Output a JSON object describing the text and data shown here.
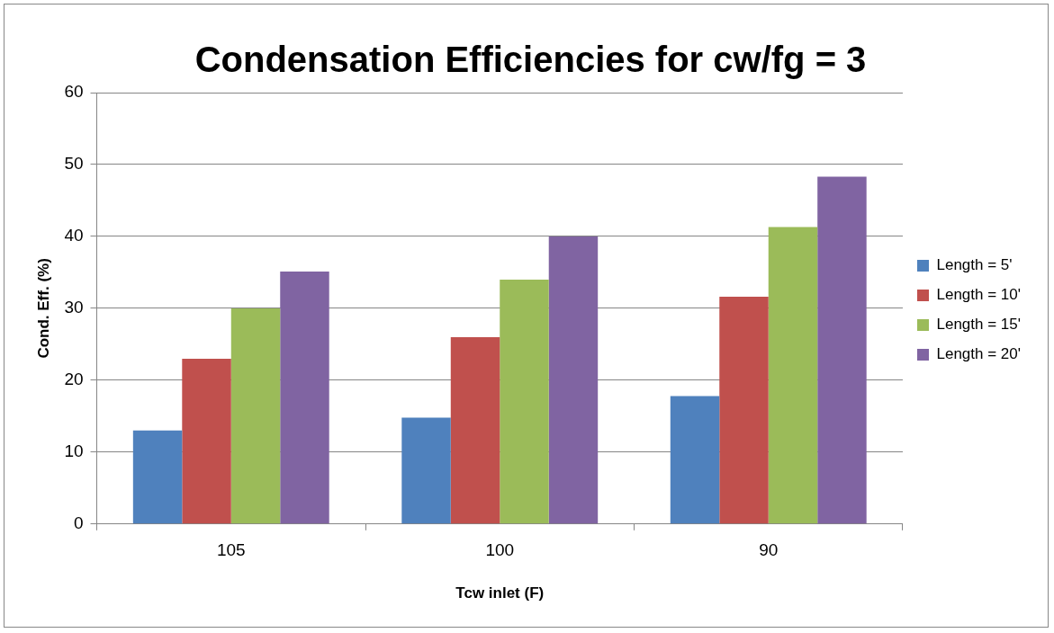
{
  "chart_data": {
    "type": "bar",
    "title": "Condensation Efficiencies for cw/fg = 3",
    "xlabel": "Tcw inlet (F)",
    "ylabel": "Cond. Eff. (%)",
    "categories": [
      "105",
      "100",
      "90"
    ],
    "series": [
      {
        "name": "Length = 5'",
        "color": "#4f81bd",
        "values": [
          13,
          14.8,
          17.8
        ]
      },
      {
        "name": "Length = 10'",
        "color": "#c0504d",
        "values": [
          23,
          26,
          31.6
        ]
      },
      {
        "name": "Length = 15'",
        "color": "#9bbb59",
        "values": [
          30,
          34,
          41.3
        ]
      },
      {
        "name": "Length = 20'",
        "color": "#8064a2",
        "values": [
          35.1,
          40,
          48.3
        ]
      }
    ],
    "ylim": [
      0,
      60
    ],
    "yticks": [
      0,
      10,
      20,
      30,
      40,
      50,
      60
    ],
    "grid": "y",
    "legend": "right"
  }
}
